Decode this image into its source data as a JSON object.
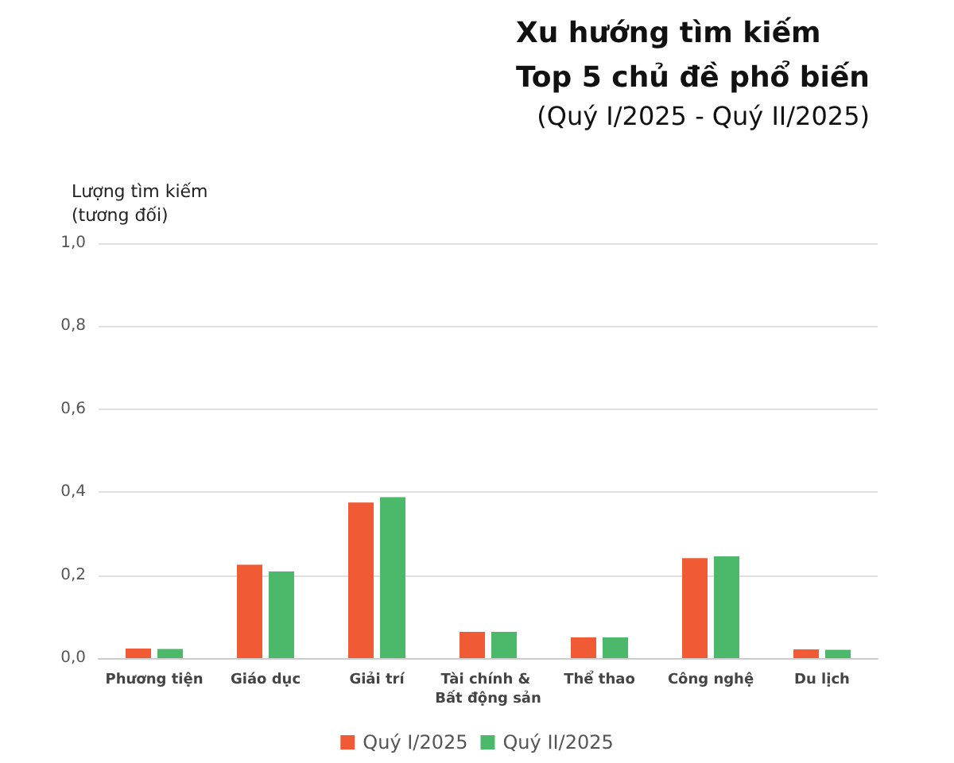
{
  "chart_data": {
    "type": "bar",
    "title": "Xu hướng tìm kiếm\nTop 5 chủ đề phổ biến",
    "subtitle": "(Quý I/2025 - Quý II/2025)",
    "ylabel": "Lượng tìm kiếm\n(tương đối)",
    "categories": [
      "Phương tiện",
      "Giáo dục",
      "Giải trí",
      "Tài chính & Bất động sản",
      "Thể thao",
      "Công nghệ",
      "Du lịch"
    ],
    "series": [
      {
        "name": "Quý I/2025",
        "color": "#f05a35",
        "values": [
          0.023,
          0.225,
          0.375,
          0.063,
          0.05,
          0.241,
          0.021
        ]
      },
      {
        "name": "Quý II/2025",
        "color": "#4cb96a",
        "values": [
          0.022,
          0.209,
          0.388,
          0.063,
          0.05,
          0.245,
          0.02
        ]
      }
    ],
    "ylim": [
      0,
      1
    ],
    "yticks": [
      {
        "value": 0,
        "label": "0,0"
      },
      {
        "value": 0.2,
        "label": "0,2"
      },
      {
        "value": 0.4,
        "label": "0,4"
      },
      {
        "value": 0.6,
        "label": "0,6"
      },
      {
        "value": 0.8,
        "label": "0,8"
      },
      {
        "value": 1,
        "label": "1,0"
      }
    ],
    "grid": "y",
    "legend": "bottom"
  }
}
